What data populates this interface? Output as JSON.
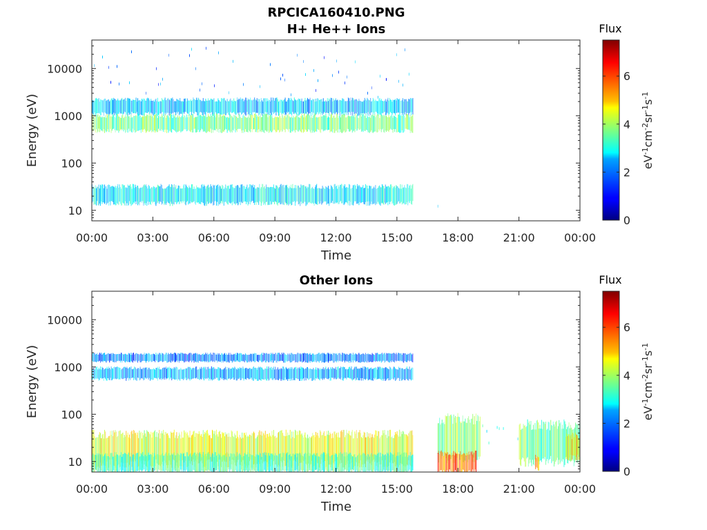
{
  "figure": {
    "title": "RPCICA160410.PNG"
  },
  "colors": {
    "axis": "#262626",
    "background": "#ffffff"
  },
  "chart_data": [
    {
      "type": "heatmap",
      "title": "H+ He++ Ions",
      "xlabel": "Time",
      "ylabel": "Energy (eV)",
      "xticks": [
        "00:00",
        "03:00",
        "06:00",
        "09:00",
        "12:00",
        "15:00",
        "18:00",
        "21:00",
        "00:00"
      ],
      "xlim_hours": [
        0,
        24
      ],
      "yscale": "log",
      "ylim": [
        6,
        40000
      ],
      "yticks": [
        10,
        100,
        1000,
        10000
      ],
      "ytick_labels": [
        "10",
        "100",
        "1000",
        "10000"
      ],
      "colorbar": {
        "label": "Flux",
        "unit": "eV-1cm-2sr-1s-1",
        "range": [
          0,
          7.5
        ],
        "ticks": [
          0,
          2,
          4,
          6
        ],
        "colormap": "jet"
      },
      "bands": [
        {
          "energy_low": 1100,
          "energy_high": 2200,
          "time_start": 0,
          "time_end": 15.8,
          "level": 2.4
        },
        {
          "energy_low": 480,
          "energy_high": 1000,
          "time_start": 0,
          "time_end": 15.8,
          "level": 3.6
        },
        {
          "energy_low": 14,
          "energy_high": 32,
          "time_start": 0,
          "time_end": 15.8,
          "level": 2.7
        },
        {
          "energy_low": 2500,
          "energy_high": 25000,
          "time_start": 0,
          "time_end": 15.8,
          "level": 1.8,
          "sparse": true
        },
        {
          "energy_low": 6,
          "energy_high": 13,
          "time_start": 17,
          "time_end": 17.1,
          "level": 2.5,
          "sparse": true
        }
      ]
    },
    {
      "type": "heatmap",
      "title": "Other Ions",
      "xlabel": "Time",
      "ylabel": "Energy (eV)",
      "xticks": [
        "00:00",
        "03:00",
        "06:00",
        "09:00",
        "12:00",
        "15:00",
        "18:00",
        "21:00",
        "00:00"
      ],
      "xlim_hours": [
        0,
        24
      ],
      "yscale": "log",
      "ylim": [
        6,
        40000
      ],
      "yticks": [
        10,
        100,
        1000,
        10000
      ],
      "ytick_labels": [
        "10",
        "100",
        "1000",
        "10000"
      ],
      "colorbar": {
        "label": "Flux",
        "unit": "eV-1cm-2sr-1s-1",
        "range": [
          0,
          7.5
        ],
        "ticks": [
          0,
          2,
          4,
          6
        ],
        "colormap": "jet"
      },
      "bands": [
        {
          "energy_low": 1300,
          "energy_high": 1900,
          "time_start": 0,
          "time_end": 15.8,
          "level": 1.9
        },
        {
          "energy_low": 550,
          "energy_high": 950,
          "time_start": 0,
          "time_end": 15.8,
          "level": 2.2
        },
        {
          "energy_low": 9,
          "energy_high": 38,
          "time_start": 0,
          "time_end": 15.8,
          "level": 4.5
        },
        {
          "energy_low": 6,
          "energy_high": 14,
          "time_start": 0,
          "time_end": 15.8,
          "level": 3.3
        },
        {
          "energy_low": 12,
          "energy_high": 80,
          "time_start": 17.0,
          "time_end": 19.1,
          "level": 3.9
        },
        {
          "energy_low": 6,
          "energy_high": 15,
          "time_start": 17.0,
          "time_end": 18.9,
          "level": 5.8
        },
        {
          "energy_low": 20,
          "energy_high": 60,
          "time_start": 19.2,
          "time_end": 21.0,
          "level": 3.0,
          "sparse": true
        },
        {
          "energy_low": 10,
          "energy_high": 60,
          "time_start": 21.0,
          "time_end": 24,
          "level": 3.6
        },
        {
          "energy_low": 7,
          "energy_high": 13,
          "time_start": 21.8,
          "time_end": 22.0,
          "level": 5.5
        },
        {
          "energy_low": 12,
          "energy_high": 35,
          "time_start": 23.3,
          "time_end": 24,
          "level": 5.0
        }
      ]
    }
  ]
}
